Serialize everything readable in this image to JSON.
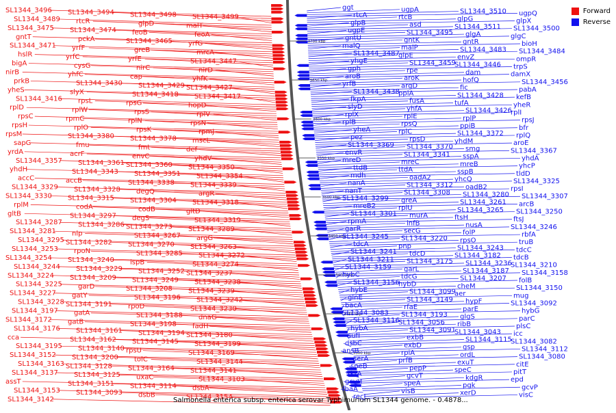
{
  "caption": "Salmonella enterica subsp. enterica serovar Typhimurium SL1344 genome. - 0.4878...",
  "legend": [
    {
      "label": "Forward",
      "color": "#ee1111"
    },
    {
      "label": "Reverse",
      "color": "#1111ee"
    }
  ],
  "colors": {
    "forward": "#ee1111",
    "reverse": "#1111ee",
    "backbone": "#555555",
    "tick": "#222222"
  },
  "ticks": [
    "3700 kbp",
    "3650 kbp",
    "3600 kbp",
    "3550 kbp",
    "3500 kbp",
    "3450 kbp",
    "3400 kbp",
    "3350 kbp",
    "3300 kbp"
  ],
  "forward_labels": [
    "SL1344_3496",
    "SL1344_3494",
    "SL1344_3498",
    "SL1344_3499",
    "SL1344_3489",
    "rtcR",
    "glpD",
    "malT",
    "SL1344_3475",
    "SL1344_3474",
    "feoB",
    "feoA",
    "gntT",
    "pckA",
    "SL1344_3465",
    "yrfG",
    "SL1344_3471",
    "yrfF",
    "greB",
    "mrcA",
    "hslR",
    "yrfC",
    "yrfE",
    "SL1344_3447",
    "bigA",
    "cysG",
    "nirC",
    "nirD",
    "nirB",
    "yhfC",
    "cap",
    "yhfK",
    "prkB",
    "SL1344_3430",
    "SL1344_3429",
    "SL1344_3427",
    "yheS",
    "slyX",
    "SL1344_3418",
    "SL1344_3417",
    "SL1344_3416",
    "rpsL",
    "rpsG",
    "hopD",
    "rplD",
    "rplW",
    "rpsS",
    "rplV",
    "rpsC",
    "rpmC",
    "rplN",
    "rpsN",
    "rpsH",
    "rplO",
    "rpsK",
    "rpmJ",
    "rpsM",
    "SL1344_3380",
    "SL1344_3378",
    "mscL",
    "sapG",
    "fmu",
    "fmt",
    "def",
    "yrdA",
    "acrF",
    "envC",
    "yhdV",
    "SL1344_3357",
    "SL1344_3361",
    "SL1344_3360",
    "SL1344_3350",
    "yhdH",
    "SL1344_3343",
    "SL1344_3351",
    "SL1344_3354",
    "accC",
    "accB",
    "SL1344_3338",
    "SL1344_3339",
    "SL1344_3329",
    "SL1344_3328",
    "degQ",
    "argR",
    "SL1344_3330",
    "SL1344_3315",
    "SL1344_3304",
    "SL1344_3318",
    "rplM",
    "codA",
    "codB",
    "gltD",
    "gltB",
    "SL1344_3297",
    "degS",
    "SL1344_3319",
    "SL1344_3287",
    "SL1344_3286",
    "SL1344_3273",
    "SL1344_3289",
    "SL1344_3281",
    "nlp",
    "SL1344_3267",
    "argG",
    "SL1344_3295",
    "SL1344_3282",
    "SL1344_3270",
    "SL1344_3263",
    "SL1344_3253",
    "rpoN",
    "SL1344_3285",
    "SL1344_3272",
    "SL1344_3254",
    "SL1344_3240",
    "ispB",
    "SL1344_3274",
    "SL1344_3244",
    "SL1344_3229",
    "SL1344_3252",
    "SL1344_3237",
    "SL1344_3224",
    "SL1344_3209",
    "SL1344_3249",
    "SL1344_3238",
    "SL1344_3225",
    "garD",
    "SL1344_3208",
    "SL1344_3239",
    "SL1344_3227",
    "gatY",
    "SL1344_3196",
    "SL1344_3242",
    "SL1344_3228",
    "SL1344_3191",
    "rpoD",
    "SL1344_3230",
    "SL1344_3197",
    "gatA",
    "SL1344_3188",
    "dnaG",
    "SL1344_3172",
    "gatB",
    "SL1344_3198",
    "fadH",
    "SL1344_3176",
    "SL1344_3161",
    "SL1344_3194",
    "SL1344_3180",
    "cca",
    "SL1344_3162",
    "SL1344_3145",
    "SL1344_3199",
    "SL1344_3195",
    "SL1344_3140",
    "rpsU",
    "SL1344_3169",
    "SL1344_3152",
    "SL1344_3200",
    "tolC",
    "SL1344_3144",
    "SL1344_3163",
    "SL1344_3128",
    "SL1344_3164",
    "SL1344_3141",
    "SL1344_3137",
    "SL1344_3125",
    "uxaC",
    "SL1344_3103",
    "assT",
    "SL1344_3151",
    "SL1344_3114",
    "dsbA",
    "SL1344_3153",
    "SL1344_3093",
    "dsbB",
    "SL1344_3154",
    "SL1344_3142"
  ],
  "reverse_labels": [
    "ggt",
    "ugpA",
    "SL1344_3510",
    "ugpQ",
    "rtcA",
    "rtcB",
    "glpG",
    "glpX",
    "glpB",
    "asd",
    "SL1344_3511",
    "SL1344_3500",
    "ugpE",
    "SL1344_3495",
    "glgA",
    "glgC",
    "gntU",
    "gntK",
    "gntR",
    "bioH",
    "malQ",
    "malP",
    "SL1344_3483",
    "SL1344_3484",
    "SL1344_3487",
    "glpE",
    "envZ",
    "ompR",
    "yhgE",
    "SL1344_3459",
    "SL1344_3446",
    "trpS",
    "gph",
    "rpe",
    "dam",
    "damX",
    "aroB",
    "aroK",
    "hofQ",
    "SL1344_3456",
    "yrfB",
    "argD",
    "fic",
    "pabA",
    "SL1344_3438",
    "ppiA",
    "SL1344_3428",
    "kefB",
    "fkpA",
    "fusA",
    "tufA",
    "yheR",
    "slyD",
    "yhfA",
    "SL1344_3426",
    "rplI",
    "rplX",
    "rplE",
    "rplP",
    "rpsJ",
    "rplB",
    "rpsQ",
    "ppiB",
    "bfr",
    "yheA",
    "rplC",
    "SL1344_3372",
    "rplQ",
    "pez",
    "rpsD",
    "yhdM",
    "aroE",
    "SL1344_3369",
    "SL1344_3370",
    "smg",
    "SL1344_3367",
    "envR",
    "SL1344_3341",
    "sspA",
    "yhdA",
    "mreD",
    "mreC",
    "mreB",
    "yhcP",
    "ttdB",
    "ttdA",
    "sspB",
    "tldD",
    "mdh",
    "oadA2",
    "yhcQ",
    "SL1344_3325",
    "nanA",
    "SL1344_3312",
    "oadB2",
    "rpsI",
    "nanT",
    "SL1344_3308",
    "SL1344_3280",
    "SL1344_3307",
    "SL1344_3299",
    "greA",
    "SL1344_3261",
    "arcB",
    "mreB2",
    "rplU",
    "SL1344_3265",
    "SL1344_3250",
    "SL1344_3301",
    "murA",
    "ftsH",
    "ftsJ",
    "rpmA",
    "infB",
    "nusA",
    "SL1344_3246",
    "garR",
    "secG",
    "folP",
    "rbfA",
    "SL1344_3245",
    "SL1344_3220",
    "rpsO",
    "truB",
    "tdcA",
    "pnp",
    "SL1344_3243",
    "tdcC",
    "SL1344_3241",
    "tdcD",
    "SL1344_3182",
    "tdcB",
    "SL1344_3211",
    "SL1344_3175",
    "SL1344_3236",
    "SL1344_3210",
    "SL1344_3159",
    "garL",
    "SL1344_3187",
    "SL1344_3158",
    "hybC",
    "tdcG",
    "SL1344_3207",
    "folB",
    "SL1344_3156",
    "hybD",
    "cheM",
    "SL1344_3150",
    "hybE",
    "SL1344_3099",
    "aer",
    "mug",
    "glnE",
    "SL1344_3149",
    "hypF",
    "SL1344_3092",
    "bacA",
    "rfaE",
    "parE",
    "hybG",
    "SL1344_3083",
    "SL1344_3193",
    "glgS",
    "parC",
    "SL1344_3116",
    "SL1344_3056",
    "ribB",
    "plsC",
    "hybA",
    "SL1344_3091",
    "SL1344_3043",
    "icc",
    "sufI",
    "exbB",
    "SL1344_3115",
    "SL1344_3082",
    "dsbC",
    "exbD",
    "gsp",
    "SL1344_3112",
    "ansB",
    "rpiA",
    "ordL",
    "SL1344_3080",
    "serA",
    "prfB",
    "exuT",
    "citE",
    "speB",
    "pepP",
    "speC",
    "pitT",
    "tktA",
    "gcvT",
    "kdgR",
    "epd",
    "gcvH",
    "speA",
    "pgk",
    "gcvP",
    "fbaA",
    "visB",
    "xerD",
    "visC",
    "recJ"
  ]
}
